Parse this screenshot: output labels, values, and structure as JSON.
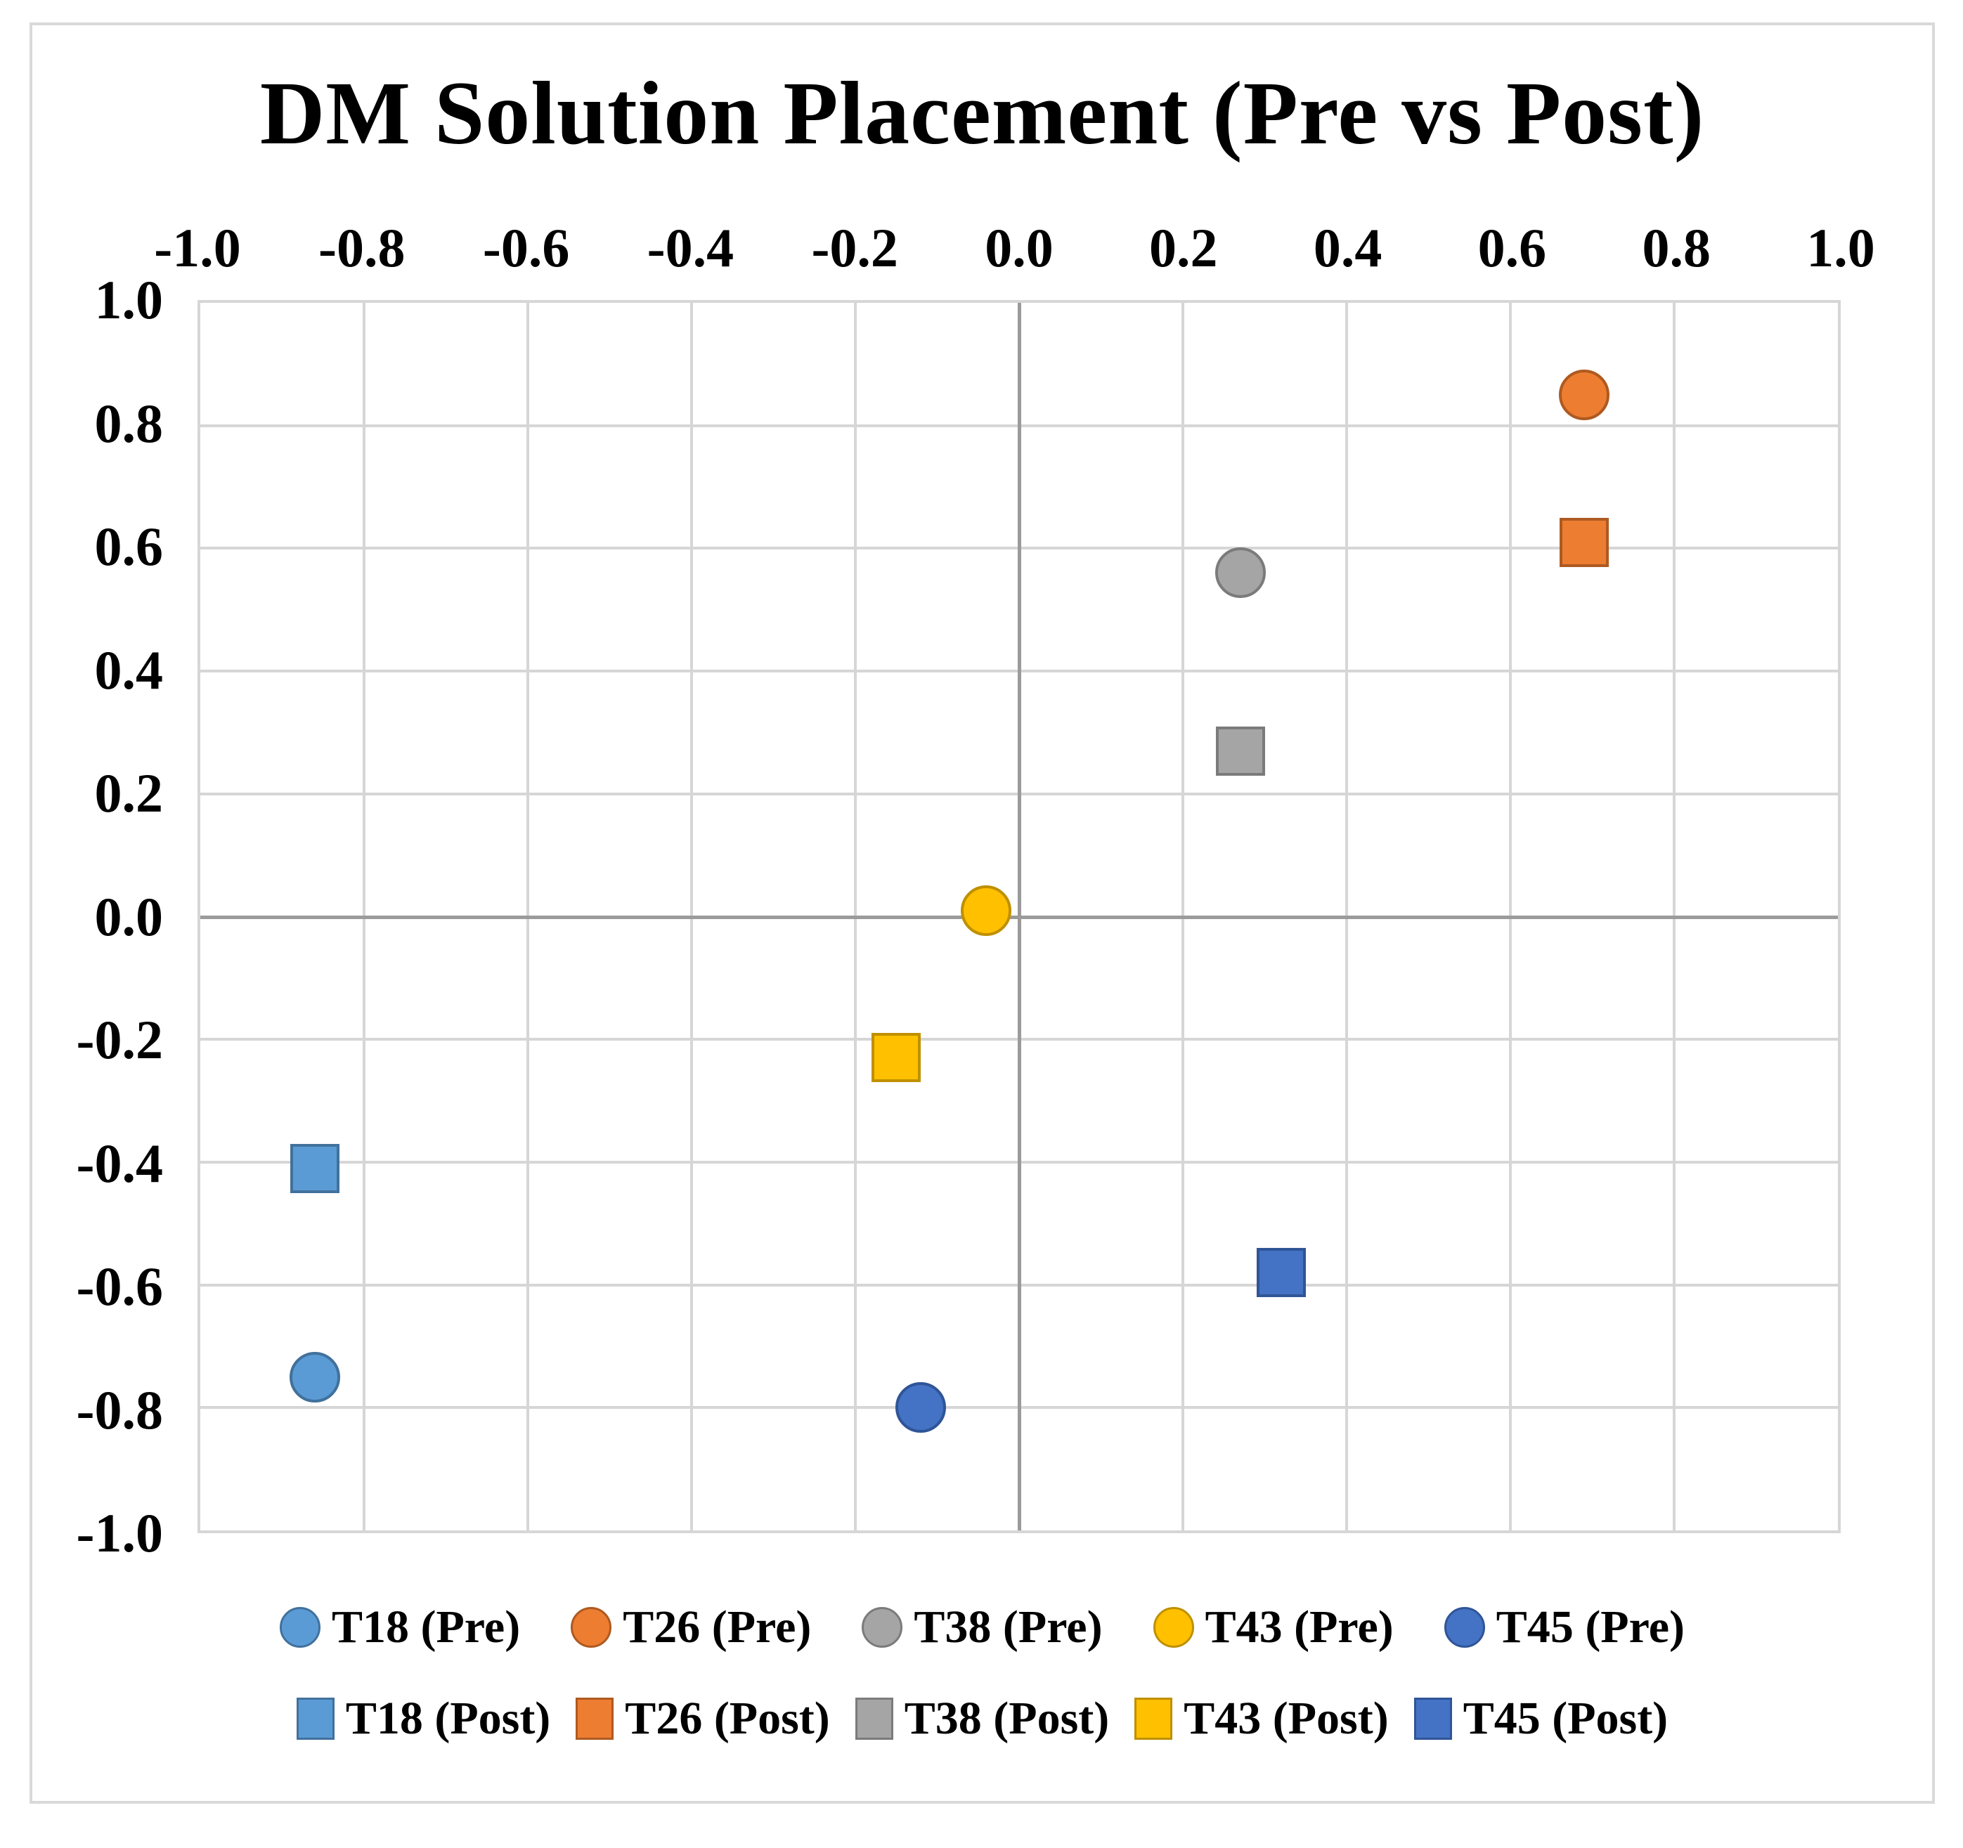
{
  "chart_data": {
    "type": "scatter",
    "title": "DM Solution Placement (Pre vs Post)",
    "xlabel": "",
    "ylabel": "",
    "xlim": [
      -1.0,
      1.0
    ],
    "ylim": [
      -1.0,
      1.0
    ],
    "x_ticks": [
      -1.0,
      -0.8,
      -0.6,
      -0.4,
      -0.2,
      0.0,
      0.2,
      0.4,
      0.6,
      0.8,
      1.0
    ],
    "x_tick_labels": [
      "-1.0",
      "-0.8",
      "-0.6",
      "-0.4",
      "-0.2",
      "0.0",
      "0.2",
      "0.4",
      "0.6",
      "0.8",
      "1.0"
    ],
    "x_axis_position": "top",
    "y_ticks": [
      1.0,
      0.8,
      0.6,
      0.4,
      0.2,
      0.0,
      -0.2,
      -0.4,
      -0.6,
      -0.8,
      -1.0
    ],
    "y_tick_labels": [
      "1.0",
      "0.8",
      "0.6",
      "0.4",
      "0.2",
      "0.0",
      "-0.2",
      "-0.4",
      "-0.6",
      "-0.8",
      "-1.0"
    ],
    "grid": true,
    "zero_axes_darker": true,
    "legend_position": "bottom",
    "series": [
      {
        "name": "T18 (Pre)",
        "marker": "circle",
        "color": "#5B9BD5",
        "border_color": "#41719C",
        "points": [
          {
            "x": -0.86,
            "y": -0.75
          }
        ]
      },
      {
        "name": "T26 (Pre)",
        "marker": "circle",
        "color": "#ED7D31",
        "border_color": "#AE5A21",
        "points": [
          {
            "x": 0.69,
            "y": 0.85
          }
        ]
      },
      {
        "name": "T38 (Pre)",
        "marker": "circle",
        "color": "#A5A5A5",
        "border_color": "#7B7B7B",
        "points": [
          {
            "x": 0.27,
            "y": 0.56
          }
        ]
      },
      {
        "name": "T43 (Pre)",
        "marker": "circle",
        "color": "#FFC000",
        "border_color": "#BF9000",
        "points": [
          {
            "x": -0.04,
            "y": 0.01
          }
        ]
      },
      {
        "name": "T45 (Pre)",
        "marker": "circle",
        "color": "#4472C4",
        "border_color": "#2F5597",
        "points": [
          {
            "x": -0.12,
            "y": -0.8
          }
        ]
      },
      {
        "name": "T18 (Post)",
        "marker": "square",
        "color": "#5B9BD5",
        "border_color": "#41719C",
        "points": [
          {
            "x": -0.86,
            "y": -0.41
          }
        ]
      },
      {
        "name": "T26 (Post)",
        "marker": "square",
        "color": "#ED7D31",
        "border_color": "#AE5A21",
        "points": [
          {
            "x": 0.69,
            "y": 0.61
          }
        ]
      },
      {
        "name": "T38 (Post)",
        "marker": "square",
        "color": "#A5A5A5",
        "border_color": "#7B7B7B",
        "points": [
          {
            "x": 0.27,
            "y": 0.27
          }
        ]
      },
      {
        "name": "T43 (Post)",
        "marker": "square",
        "color": "#FFC000",
        "border_color": "#BF9000",
        "points": [
          {
            "x": -0.15,
            "y": -0.23
          }
        ]
      },
      {
        "name": "T45 (Post)",
        "marker": "square",
        "color": "#4472C4",
        "border_color": "#2F5597",
        "points": [
          {
            "x": 0.32,
            "y": -0.58
          }
        ]
      }
    ],
    "legend_rows": [
      [
        "T18 (Pre)",
        "T26 (Pre)",
        "T38 (Pre)",
        "T43 (Pre)",
        "T45 (Pre)"
      ],
      [
        "T18 (Post)",
        "T26 (Post)",
        "T38 (Post)",
        "T43 (Post)",
        "T45 (Post)"
      ]
    ],
    "colors": {
      "grid": "#D6D6D6",
      "zero_axis": "#9B9B9B",
      "frame_border": "#D9D9D9",
      "plot_border": "#D6D6D6",
      "text": "#000000"
    }
  }
}
